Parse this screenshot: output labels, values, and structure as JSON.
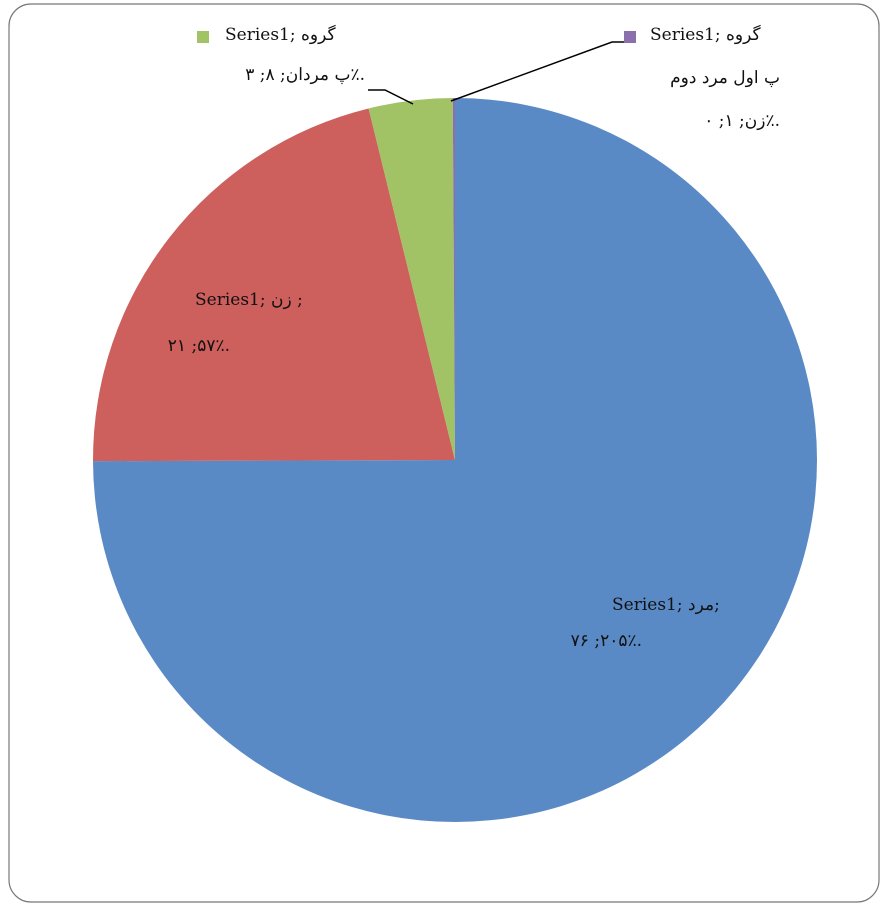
{
  "chart_data": {
    "type": "pie",
    "values": [
      76.2,
      21.57,
      3.8,
      0.1
    ],
    "colors": [
      "#5a8ac6",
      "#cd5f5c",
      "#a2c266",
      "#8b70ab"
    ],
    "labels": [
      [
        "Series1; مرد;",
        "۷۶ ;۲۰۵٪."
      ],
      [
        "Series1; زن ;",
        "۲۱ ;۵۷٪."
      ],
      [
        "Series1; گروه",
        "پ مردان; ۸; ۳٪."
      ],
      [
        "Series1; گروه",
        "پ اول مرد دوم",
        "زن; ۱; ۰٪."
      ]
    ]
  }
}
